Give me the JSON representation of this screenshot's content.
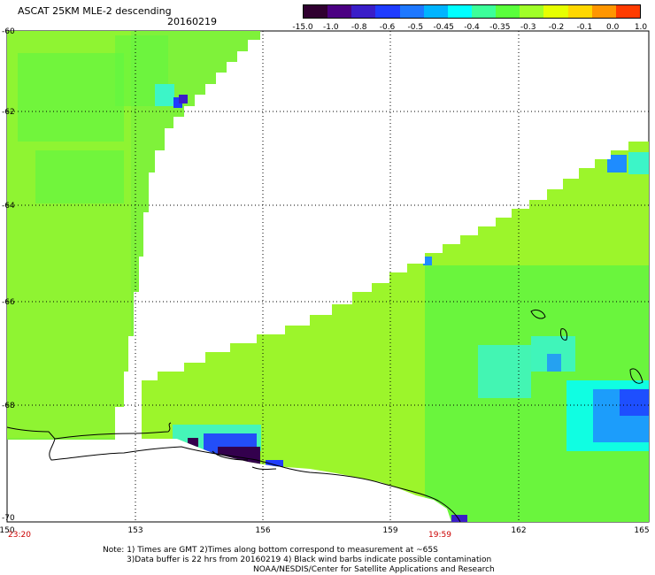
{
  "header": {
    "title": "ASCAT 25KM MLE-2 descending",
    "date": "20160219"
  },
  "colorbar": {
    "labels": [
      "-15.0",
      "-1.0",
      "-0.8",
      "-0.6",
      "-0.5",
      "-0.45",
      "-0.4",
      "-0.35",
      "-0.3",
      "-0.2",
      "-0.1",
      "0.0",
      "1.0"
    ],
    "colors": [
      "#300030",
      "#4b0082",
      "#3a1ec8",
      "#1f3cff",
      "#1e78ff",
      "#00b4ff",
      "#00ffff",
      "#3cff9a",
      "#5aff3c",
      "#a0ff28",
      "#e6ff00",
      "#ffd700",
      "#ff9600",
      "#ff3c00"
    ]
  },
  "map": {
    "lat_labels": [
      "-60",
      "-62",
      "-64",
      "-66",
      "-68",
      "-70"
    ],
    "lon_labels": [
      "150",
      "153",
      "156",
      "159",
      "162",
      "165"
    ],
    "time_labels": [
      "23:20",
      "19:59"
    ],
    "colors": {
      "green": "#5ef542",
      "lime": "#9cf52b",
      "light_green": "#7ff23a",
      "cyan": "#3cf5c8",
      "aqua": "#00ffff",
      "blue": "#1e8cff",
      "deep_blue": "#1f3cff",
      "violet": "#3a1ec8",
      "dark_purple": "#33004d"
    }
  },
  "footer": {
    "line1": "Note: 1) Times are GMT 2)Times along bottom correspond to measurement at ~65S",
    "line2": "3)Data buffer is 22 hrs from 20160219 4) Black wind barbs indicate possible contamination",
    "line3": "NOAA/NESDIS/Center for Satellite Applications and Research"
  }
}
